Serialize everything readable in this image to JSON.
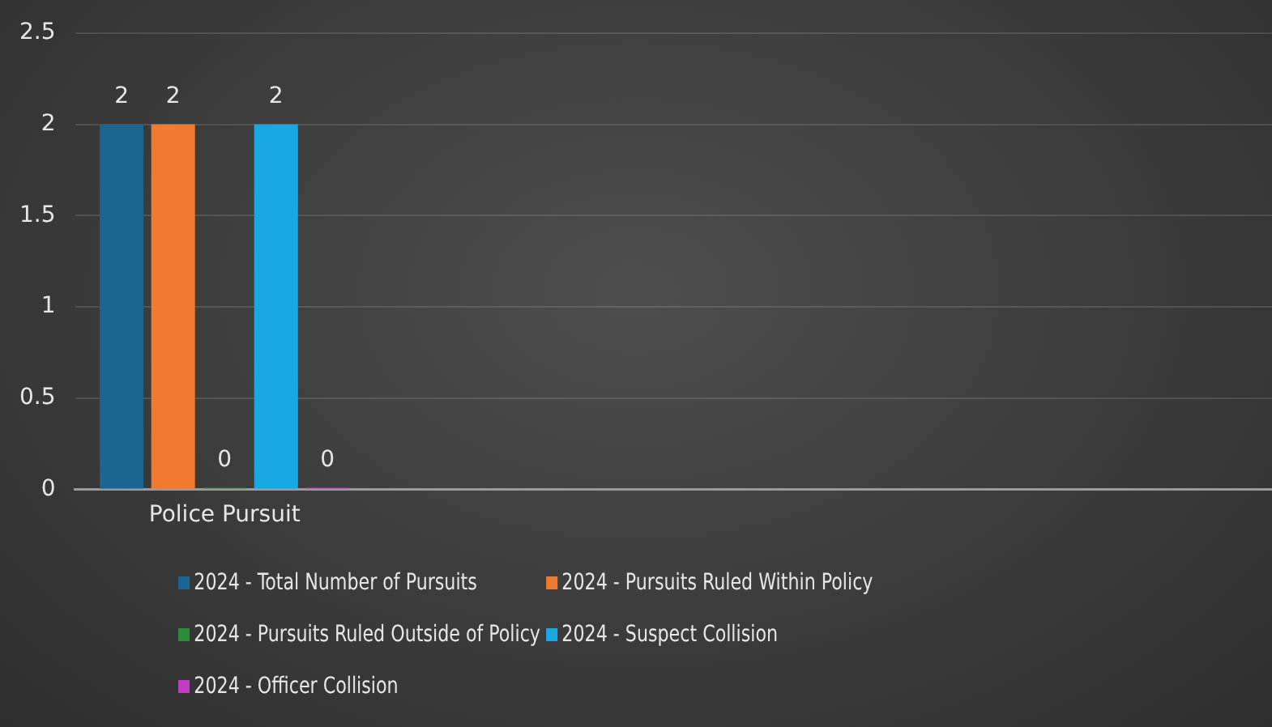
{
  "chart_data": {
    "type": "bar",
    "categories": [
      "Police Pursuit",
      null,
      null,
      null
    ],
    "series": [
      {
        "name": "2024 - Total Number of Pursuits",
        "color": "#1a6690",
        "values": [
          2,
          null,
          null,
          null
        ]
      },
      {
        "name": "2024 - Pursuits Ruled Within Policy",
        "color": "#f07a30",
        "values": [
          2,
          null,
          null,
          null
        ]
      },
      {
        "name": "2024 - Pursuits Ruled Outside of Policy",
        "color": "#2e8b3a",
        "values": [
          0,
          null,
          null,
          null
        ]
      },
      {
        "name": "2024 - Suspect Collision",
        "color": "#1aa8e4",
        "values": [
          2,
          null,
          null,
          null
        ]
      },
      {
        "name": "2024 - Officer Collision",
        "color": "#c03cc0",
        "values": [
          0,
          null,
          null,
          null
        ]
      }
    ],
    "ylim": [
      0,
      2.5
    ],
    "yticks": [
      0,
      0.5,
      1,
      1.5,
      2,
      2.5
    ],
    "grid": "y",
    "legend": "bottom",
    "data_labels": true
  }
}
